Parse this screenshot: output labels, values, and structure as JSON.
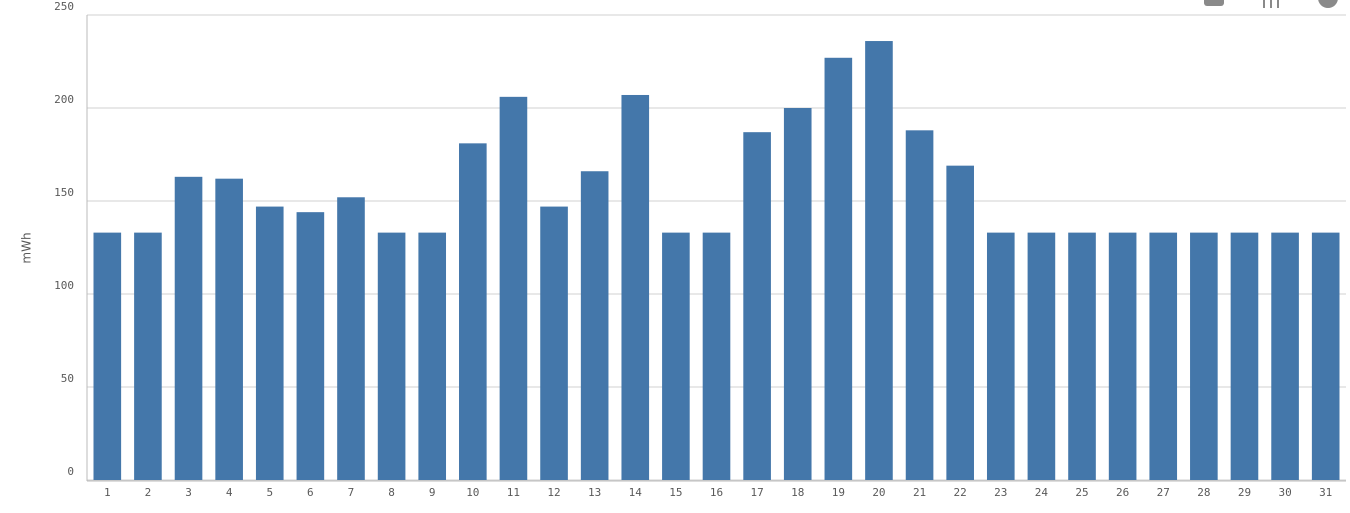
{
  "chart_data": {
    "type": "bar",
    "y_axis_label": "mWh",
    "categories": [
      "1",
      "2",
      "3",
      "4",
      "5",
      "6",
      "7",
      "8",
      "9",
      "10",
      "11",
      "12",
      "13",
      "14",
      "15",
      "16",
      "17",
      "18",
      "19",
      "20",
      "21",
      "22",
      "23",
      "24",
      "25",
      "26",
      "27",
      "28",
      "29",
      "30",
      "31"
    ],
    "values": [
      133,
      133,
      163,
      162,
      147,
      144,
      152,
      133,
      133,
      181,
      206,
      147,
      166,
      207,
      133,
      133,
      187,
      200,
      227,
      236,
      188,
      169,
      133,
      133,
      133,
      133,
      133,
      133,
      133,
      133,
      133
    ],
    "color": "#4477aa",
    "ylim": [
      0,
      250
    ],
    "yticks": [
      0,
      50,
      100,
      150,
      200,
      250
    ],
    "grid": true
  }
}
